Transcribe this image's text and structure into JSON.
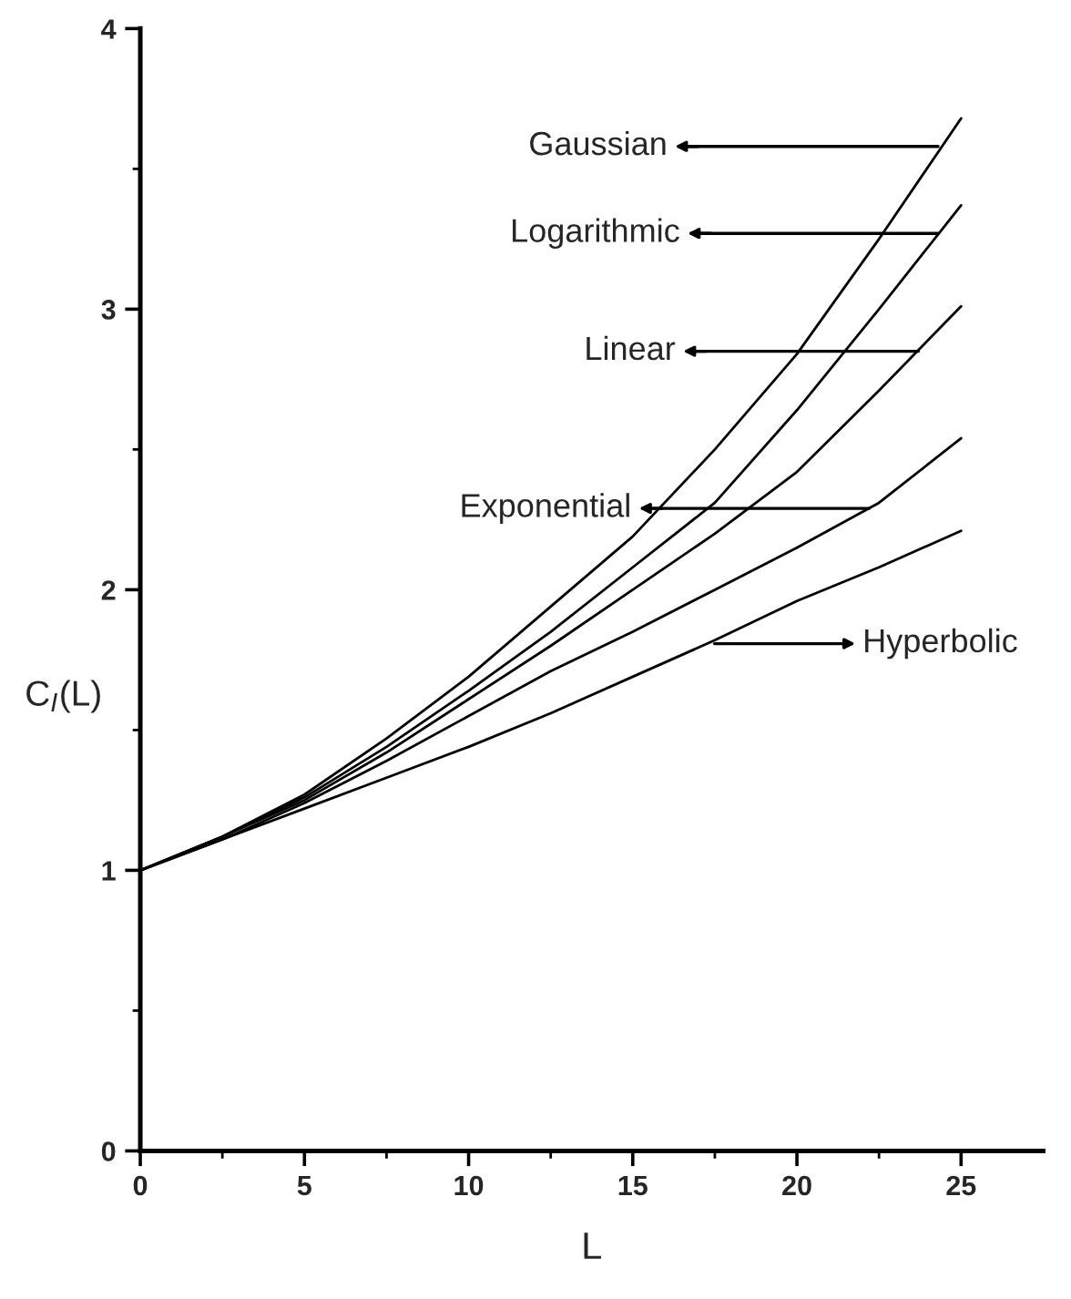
{
  "chart_data": {
    "type": "line",
    "xlabel": "L",
    "ylabel": "C$_{I}$(L)",
    "x": [
      0,
      2.5,
      5,
      7.5,
      10,
      12.5,
      15,
      17.5,
      20,
      22.5,
      25
    ],
    "series": [
      {
        "color": "#000000",
        "values": [
          1,
          1.12,
          1.27,
          1.47,
          1.69,
          1.94,
          2.19,
          2.5,
          2.84,
          3.25,
          3.68
        ]
      },
      {
        "color": "#000000",
        "values": [
          1,
          1.12,
          1.26,
          1.44,
          1.64,
          1.85,
          2.08,
          2.31,
          2.64,
          3.0,
          3.37
        ]
      },
      {
        "color": "#000000",
        "values": [
          1,
          1.12,
          1.25,
          1.42,
          1.61,
          1.8,
          2.0,
          2.2,
          2.42,
          2.71,
          3.01
        ]
      },
      {
        "color": "#000000",
        "values": [
          1,
          1.11,
          1.24,
          1.39,
          1.55,
          1.71,
          1.85,
          2.0,
          2.15,
          2.31,
          2.54
        ]
      },
      {
        "color": "#000000",
        "values": [
          1,
          1.11,
          1.22,
          1.33,
          1.44,
          1.56,
          1.69,
          1.82,
          1.96,
          2.08,
          2.21
        ]
      }
    ],
    "annotations": [
      {
        "text": "Gaussian",
        "x": 24.3,
        "y": 3.58
      },
      {
        "text": "Logarithmic",
        "x": 24.3,
        "y": 3.27
      },
      {
        "text": "Linear",
        "x": 23.7,
        "y": 2.85
      },
      {
        "text": "Exponential",
        "x": 22.2,
        "y": 2.29
      },
      "Hyperbolic"
    ],
    "xlim": [
      0,
      27.5
    ],
    "xticks": [
      0,
      {
        "value": 2.5,
        "label": null
      },
      5,
      {
        "value": 7.5,
        "label": null
      },
      10,
      {
        "value": 12.5,
        "label": null
      },
      15,
      {
        "value": 17.5,
        "label": null
      },
      20,
      {
        "value": 22.5,
        "label": null
      },
      25
    ],
    "ylim": [
      0,
      4
    ],
    "yticks": [
      0,
      {
        "value": 0.5,
        "label": null
      },
      1,
      {
        "value": 1.5,
        "label": null
      },
      2,
      {
        "value": 2.5,
        "label": null
      },
      3,
      {
        "value": 3.5,
        "label": null
      },
      4
    ],
    "grid": false,
    "legend": false,
    "marker": "none",
    "line_style": "solid"
  }
}
